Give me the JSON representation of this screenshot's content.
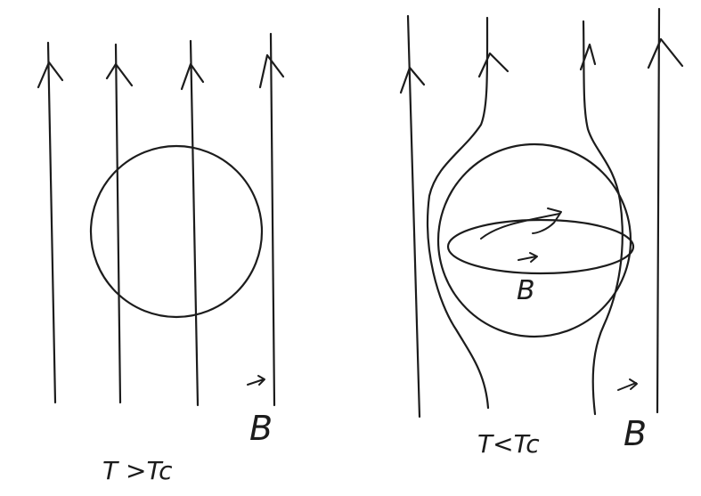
{
  "panels": {
    "normal_state": {
      "temperature_label": "T >Tc",
      "field_label": "B"
    },
    "superconducting_state": {
      "temperature_label": "T<Tc",
      "field_label": "B",
      "current_label": "B"
    }
  }
}
